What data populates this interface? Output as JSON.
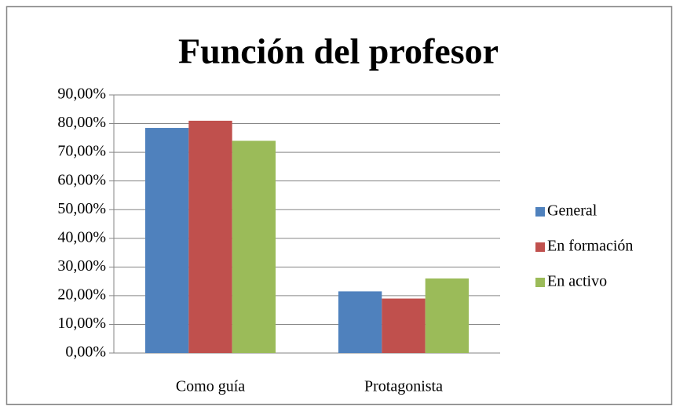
{
  "chart_data": {
    "type": "bar",
    "title": "Función del profesor",
    "categories": [
      "Como guía",
      "Protagonista"
    ],
    "series": [
      {
        "name": "General",
        "color": "#4f81bd",
        "values": [
          78.5,
          21.5
        ]
      },
      {
        "name": "En formación",
        "color": "#c0504d",
        "values": [
          81,
          19
        ]
      },
      {
        "name": "En activo",
        "color": "#9bbb59",
        "values": [
          74,
          26
        ]
      }
    ],
    "ylim": [
      0,
      90
    ],
    "yticks": [
      {
        "value": 0,
        "label": "0,00%"
      },
      {
        "value": 10,
        "label": "10,00%"
      },
      {
        "value": 20,
        "label": "20,00%"
      },
      {
        "value": 30,
        "label": "30,00%"
      },
      {
        "value": 40,
        "label": "40,00%"
      },
      {
        "value": 50,
        "label": "50,00%"
      },
      {
        "value": 60,
        "label": "60,00%"
      },
      {
        "value": 70,
        "label": "70,00%"
      },
      {
        "value": 80,
        "label": "80,00%"
      },
      {
        "value": 90,
        "label": "90,00%"
      }
    ],
    "grid": true,
    "legend": "right"
  }
}
